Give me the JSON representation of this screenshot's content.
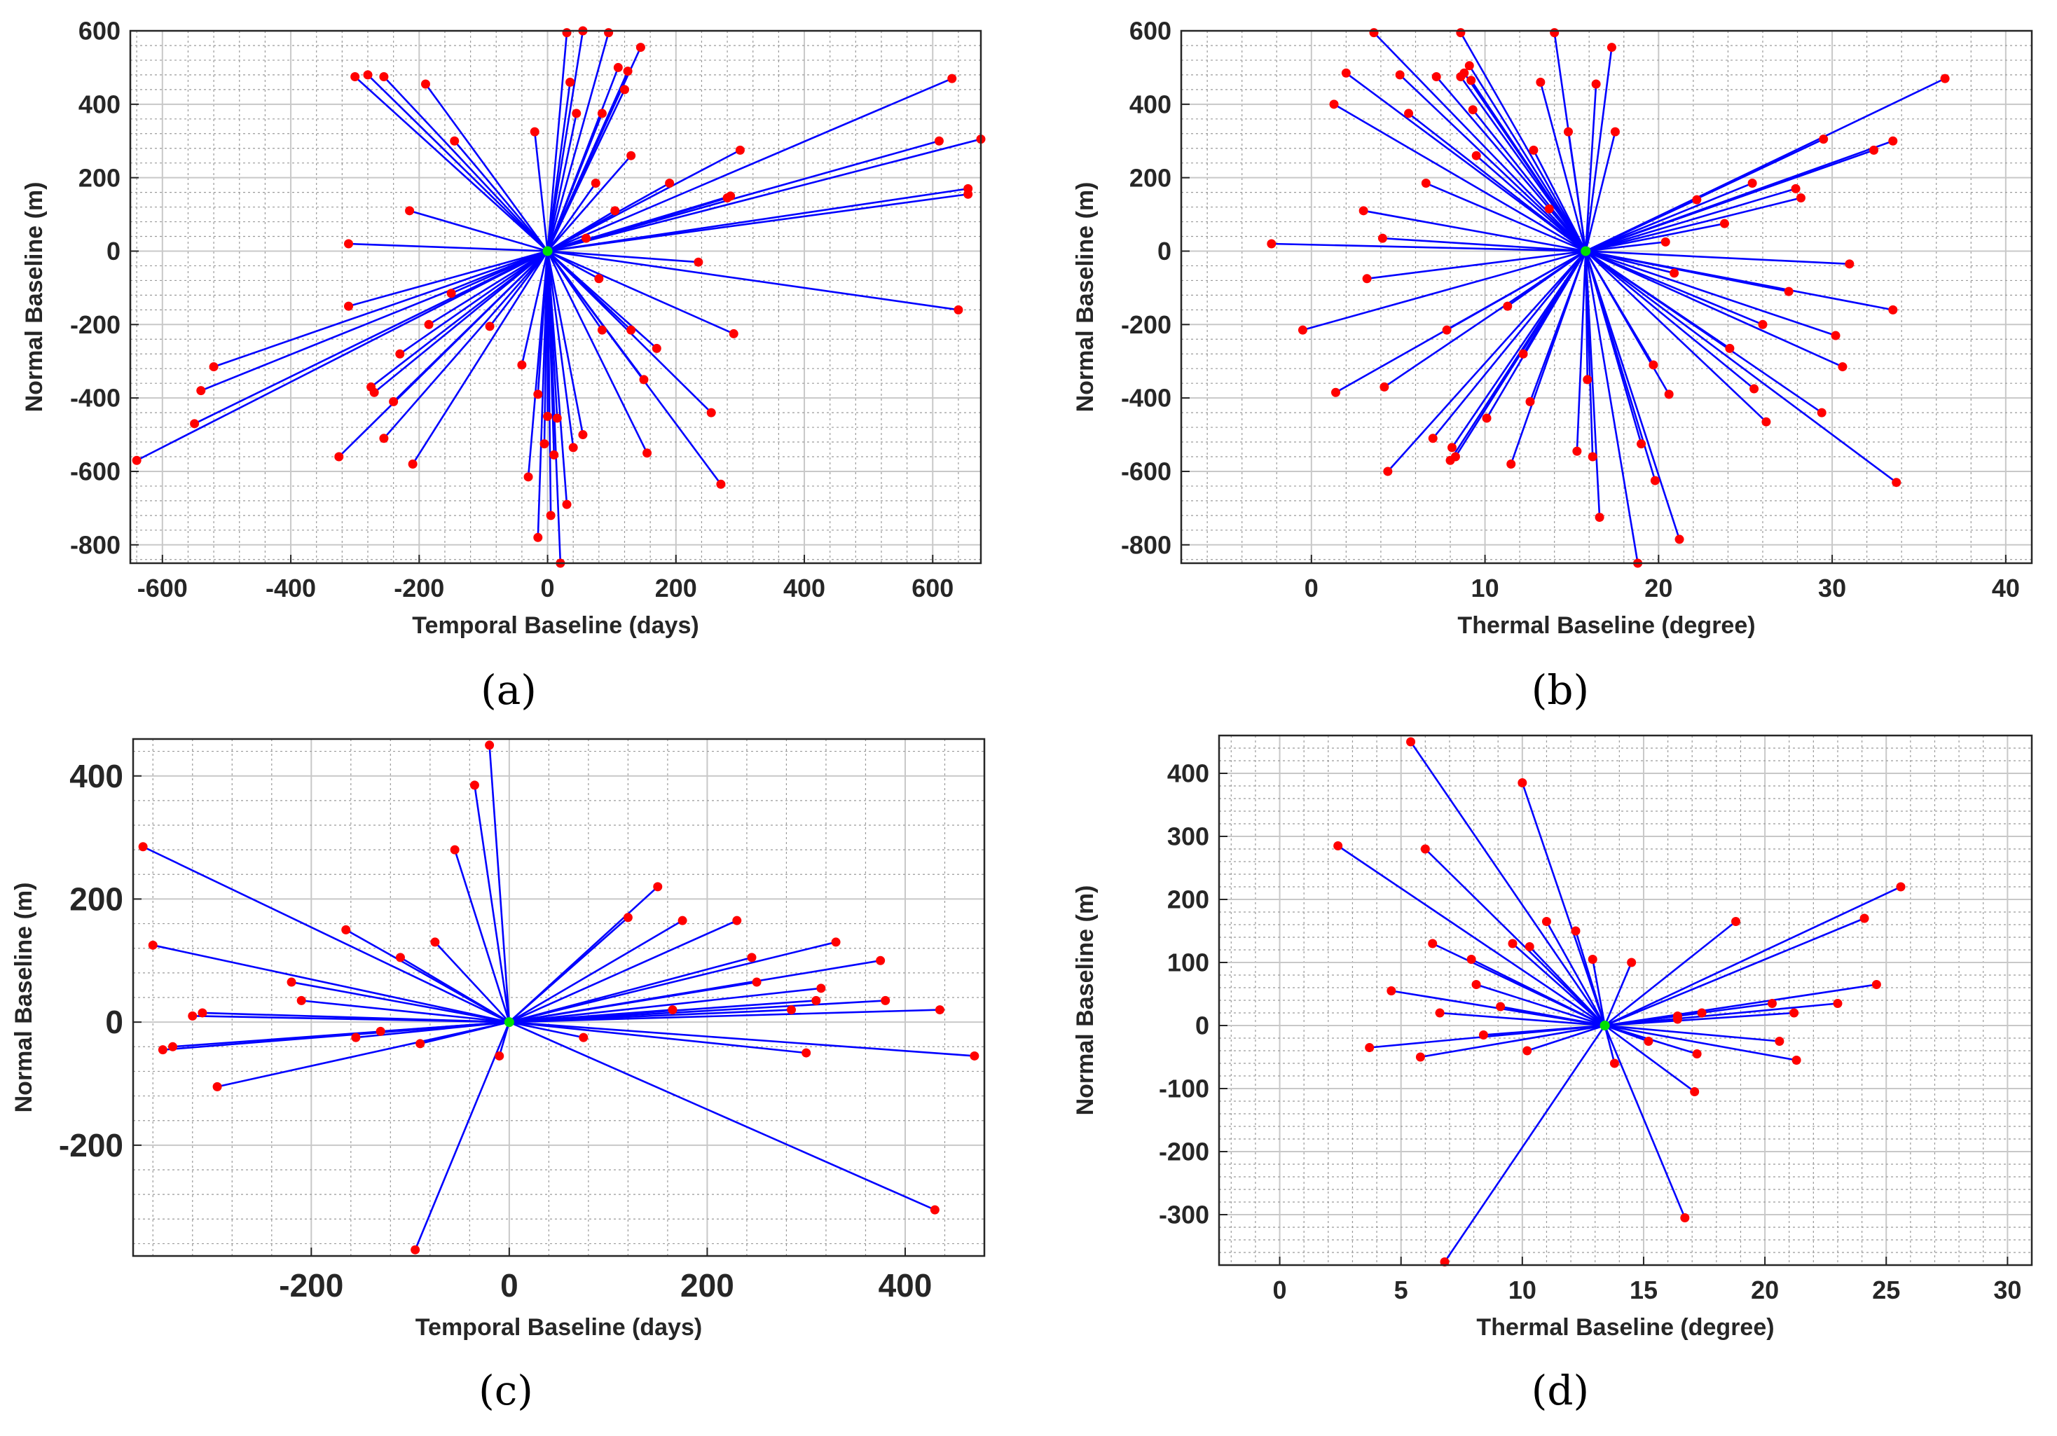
{
  "colors": {
    "line": "#0000ff",
    "point": "#ff0000",
    "master": "#00e000",
    "grid_major": "#c8c8c8",
    "grid_minor": "#9a9a9a"
  },
  "chart_data": [
    {
      "type": "scatter",
      "panel_label": "(a)",
      "xlabel": "Temporal Baseline (days)",
      "ylabel": "Normal Baseline (m)",
      "xlim": [
        -650,
        675
      ],
      "ylim": [
        -850,
        600
      ],
      "xticks": [
        -600,
        -400,
        -200,
        0,
        200,
        400,
        600
      ],
      "yticks": [
        -800,
        -600,
        -400,
        -200,
        0,
        200,
        400,
        600
      ],
      "tick_labels_x": [
        "-600",
        "-400",
        "-200",
        "0",
        "200",
        "400",
        "600"
      ],
      "tick_labels_y": [
        "-800",
        "-600",
        "-400",
        "-200",
        "0",
        "200",
        "400",
        "600"
      ],
      "grid": true,
      "master": [
        0,
        0
      ],
      "slaves": [
        [
          -640,
          -570
        ],
        [
          -550,
          -470
        ],
        [
          -540,
          -380
        ],
        [
          -520,
          -315
        ],
        [
          -325,
          -560
        ],
        [
          -310,
          -150
        ],
        [
          -300,
          475
        ],
        [
          -310,
          20
        ],
        [
          -280,
          480
        ],
        [
          -275,
          -370
        ],
        [
          -270,
          -385
        ],
        [
          -255,
          475
        ],
        [
          -255,
          -510
        ],
        [
          -240,
          -410
        ],
        [
          -230,
          -280
        ],
        [
          -215,
          110
        ],
        [
          -210,
          -580
        ],
        [
          -190,
          455
        ],
        [
          -185,
          -200
        ],
        [
          -150,
          -115
        ],
        [
          -145,
          300
        ],
        [
          -90,
          -205
        ],
        [
          -40,
          -310
        ],
        [
          -30,
          -615
        ],
        [
          -20,
          325
        ],
        [
          -15,
          -390
        ],
        [
          -15,
          -780
        ],
        [
          -5,
          -525
        ],
        [
          0,
          -450
        ],
        [
          5,
          -720
        ],
        [
          10,
          -555
        ],
        [
          15,
          -455
        ],
        [
          20,
          -850
        ],
        [
          30,
          595
        ],
        [
          30,
          -690
        ],
        [
          35,
          460
        ],
        [
          40,
          -535
        ],
        [
          45,
          375
        ],
        [
          55,
          600
        ],
        [
          55,
          -500
        ],
        [
          60,
          35
        ],
        [
          75,
          185
        ],
        [
          80,
          -75
        ],
        [
          85,
          -215
        ],
        [
          85,
          375
        ],
        [
          95,
          595
        ],
        [
          105,
          110
        ],
        [
          110,
          500
        ],
        [
          120,
          440
        ],
        [
          125,
          490
        ],
        [
          130,
          260
        ],
        [
          130,
          -215
        ],
        [
          145,
          555
        ],
        [
          150,
          -350
        ],
        [
          155,
          -550
        ],
        [
          170,
          -265
        ],
        [
          190,
          185
        ],
        [
          235,
          -30
        ],
        [
          255,
          -440
        ],
        [
          270,
          -635
        ],
        [
          280,
          145
        ],
        [
          285,
          150
        ],
        [
          290,
          -225
        ],
        [
          300,
          275
        ],
        [
          610,
          300
        ],
        [
          630,
          470
        ],
        [
          640,
          -160
        ],
        [
          655,
          155
        ],
        [
          655,
          170
        ],
        [
          675,
          305
        ]
      ]
    },
    {
      "type": "scatter",
      "panel_label": "(b)",
      "xlabel": "Thermal Baseline (degree)",
      "ylabel": "Normal Baseline (m)",
      "xlim": [
        -7.5,
        41.5
      ],
      "ylim": [
        -850,
        600
      ],
      "xticks": [
        0,
        10,
        20,
        30,
        40
      ],
      "yticks": [
        -800,
        -600,
        -400,
        -200,
        0,
        200,
        400,
        600
      ],
      "tick_labels_x": [
        "0",
        "10",
        "20",
        "30",
        "40"
      ],
      "tick_labels_y": [
        "-800",
        "-600",
        "-400",
        "-200",
        "0",
        "200",
        "400",
        "600"
      ],
      "grid": true,
      "master": [
        15.8,
        0
      ],
      "slaves": [
        [
          -2.3,
          20
        ],
        [
          -0.5,
          -215
        ],
        [
          1.3,
          400
        ],
        [
          1.4,
          -385
        ],
        [
          2.0,
          485
        ],
        [
          3.0,
          110
        ],
        [
          3.2,
          -75
        ],
        [
          3.6,
          595
        ],
        [
          4.1,
          35
        ],
        [
          4.2,
          -370
        ],
        [
          4.4,
          -600
        ],
        [
          5.1,
          480
        ],
        [
          5.6,
          375
        ],
        [
          6.6,
          185
        ],
        [
          7.0,
          -510
        ],
        [
          7.2,
          475
        ],
        [
          7.8,
          -215
        ],
        [
          8.0,
          -570
        ],
        [
          8.1,
          -535
        ],
        [
          8.3,
          -560
        ],
        [
          8.6,
          595
        ],
        [
          8.6,
          475
        ],
        [
          8.8,
          485
        ],
        [
          9.1,
          505
        ],
        [
          9.2,
          465
        ],
        [
          9.3,
          385
        ],
        [
          9.5,
          260
        ],
        [
          10.1,
          -455
        ],
        [
          11.3,
          -150
        ],
        [
          11.5,
          -580
        ],
        [
          12.2,
          -280
        ],
        [
          12.6,
          -410
        ],
        [
          12.8,
          275
        ],
        [
          13.2,
          460
        ],
        [
          13.7,
          115
        ],
        [
          14.0,
          595
        ],
        [
          14.8,
          325
        ],
        [
          15.3,
          -545
        ],
        [
          15.9,
          -350
        ],
        [
          16.2,
          -560
        ],
        [
          16.4,
          455
        ],
        [
          16.6,
          -725
        ],
        [
          17.3,
          555
        ],
        [
          17.5,
          325
        ],
        [
          18.8,
          -850
        ],
        [
          19.0,
          -525
        ],
        [
          19.7,
          -310
        ],
        [
          19.8,
          -625
        ],
        [
          20.4,
          25
        ],
        [
          20.6,
          -390
        ],
        [
          20.9,
          -60
        ],
        [
          21.2,
          -785
        ],
        [
          22.2,
          140
        ],
        [
          23.8,
          75
        ],
        [
          24.1,
          -265
        ],
        [
          25.4,
          185
        ],
        [
          25.5,
          -375
        ],
        [
          26.0,
          -200
        ],
        [
          26.2,
          -465
        ],
        [
          27.5,
          -110
        ],
        [
          27.9,
          170
        ],
        [
          28.2,
          145
        ],
        [
          29.4,
          -440
        ],
        [
          29.5,
          305
        ],
        [
          30.2,
          -230
        ],
        [
          30.6,
          -315
        ],
        [
          31.0,
          -35
        ],
        [
          32.4,
          275
        ],
        [
          33.5,
          300
        ],
        [
          33.5,
          -160
        ],
        [
          33.7,
          -630
        ],
        [
          36.5,
          470
        ]
      ]
    },
    {
      "type": "scatter",
      "panel_label": "(c)",
      "xlabel": "Temporal Baseline (days)",
      "ylabel": "Normal Baseline (m)",
      "xlim": [
        -380,
        480
      ],
      "ylim": [
        -380,
        460
      ],
      "xticks": [
        -200,
        0,
        200,
        400
      ],
      "yticks": [
        -200,
        0,
        200,
        400
      ],
      "tick_labels_x": [
        "-200",
        "0",
        "200",
        "400"
      ],
      "tick_labels_y": [
        "-200",
        "0",
        "200",
        "400"
      ],
      "grid": true,
      "master": [
        0,
        0
      ],
      "slaves": [
        [
          -370,
          285
        ],
        [
          -360,
          125
        ],
        [
          -350,
          -45
        ],
        [
          -340,
          -40
        ],
        [
          -320,
          10
        ],
        [
          -310,
          15
        ],
        [
          -295,
          -105
        ],
        [
          -220,
          65
        ],
        [
          -210,
          35
        ],
        [
          -165,
          150
        ],
        [
          -155,
          -25
        ],
        [
          -130,
          -15
        ],
        [
          -110,
          105
        ],
        [
          -90,
          -35
        ],
        [
          -75,
          130
        ],
        [
          -55,
          280
        ],
        [
          -35,
          385
        ],
        [
          -20,
          450
        ],
        [
          -10,
          -55
        ],
        [
          -95,
          -370
        ],
        [
          75,
          -25
        ],
        [
          120,
          170
        ],
        [
          150,
          220
        ],
        [
          165,
          20
        ],
        [
          175,
          165
        ],
        [
          230,
          165
        ],
        [
          245,
          105
        ],
        [
          250,
          65
        ],
        [
          285,
          20
        ],
        [
          300,
          -50
        ],
        [
          310,
          35
        ],
        [
          315,
          55
        ],
        [
          330,
          130
        ],
        [
          375,
          100
        ],
        [
          380,
          35
        ],
        [
          430,
          -305
        ],
        [
          435,
          20
        ],
        [
          470,
          -55
        ]
      ]
    },
    {
      "type": "scatter",
      "panel_label": "(d)",
      "xlabel": "Thermal Baseline (degree)",
      "ylabel": "Normal Baseline (m)",
      "xlim": [
        -2.5,
        31
      ],
      "ylim": [
        -380,
        460
      ],
      "xticks": [
        0,
        5,
        10,
        15,
        20,
        25,
        30
      ],
      "yticks": [
        -300,
        -200,
        -100,
        0,
        100,
        200,
        300,
        400
      ],
      "tick_labels_x": [
        "0",
        "5",
        "10",
        "15",
        "20",
        "25",
        "30"
      ],
      "tick_labels_y": [
        "-300",
        "-200",
        "-100",
        "0",
        "100",
        "200",
        "300",
        "400"
      ],
      "grid": true,
      "master": [
        13.4,
        0
      ],
      "slaves": [
        [
          2.4,
          285
        ],
        [
          3.7,
          -35
        ],
        [
          4.6,
          55
        ],
        [
          5.4,
          450
        ],
        [
          5.8,
          -50
        ],
        [
          6.0,
          280
        ],
        [
          6.3,
          130
        ],
        [
          6.6,
          20
        ],
        [
          6.8,
          -375
        ],
        [
          7.9,
          105
        ],
        [
          8.1,
          65
        ],
        [
          8.4,
          -15
        ],
        [
          9.1,
          30
        ],
        [
          9.6,
          130
        ],
        [
          10.0,
          385
        ],
        [
          10.2,
          -40
        ],
        [
          10.3,
          125
        ],
        [
          11.0,
          165
        ],
        [
          12.2,
          150
        ],
        [
          12.9,
          105
        ],
        [
          13.8,
          -60
        ],
        [
          14.5,
          100
        ],
        [
          15.2,
          -25
        ],
        [
          16.4,
          15
        ],
        [
          16.4,
          10
        ],
        [
          16.7,
          -305
        ],
        [
          17.1,
          -105
        ],
        [
          17.2,
          -45
        ],
        [
          17.4,
          20
        ],
        [
          18.8,
          165
        ],
        [
          20.3,
          35
        ],
        [
          20.6,
          -25
        ],
        [
          21.2,
          20
        ],
        [
          21.3,
          -55
        ],
        [
          23.0,
          35
        ],
        [
          24.1,
          170
        ],
        [
          24.6,
          65
        ],
        [
          25.6,
          220
        ]
      ]
    }
  ]
}
